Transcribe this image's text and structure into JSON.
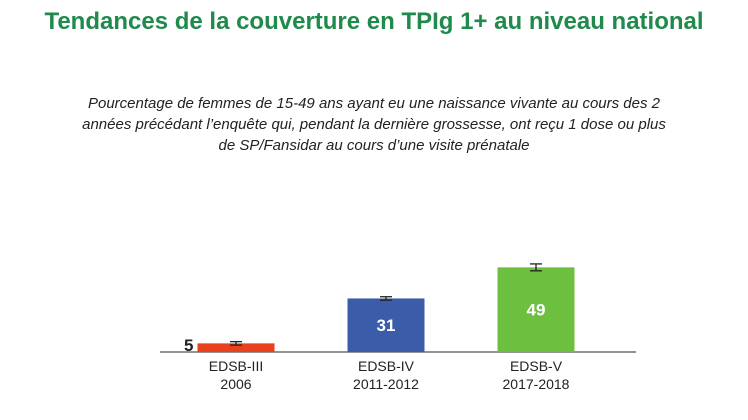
{
  "header": {
    "title": "Tendances de la couverture en TPIg 1+ au niveau national",
    "subtitle": "Pourcentage de femmes de 15-49 ans ayant eu une naissance vivante au cours des 2 années précédant l’enquête qui, pendant la dernière grossesse, ont reçu 1 dose ou plus de SP/Fansidar au cours d’une visite prénatale"
  },
  "chart_data": {
    "type": "bar",
    "title": "Tendances de la couverture en TPIg 1+ au niveau national",
    "subtitle": "Pourcentage de femmes de 15-49 ans ayant eu une naissance vivante au cours des 2 années précédant l’enquête qui, pendant la dernière grossesse, ont reçu 1 dose ou plus de SP/Fansidar au cours d’une visite prénatale",
    "categories": [
      {
        "line1": "EDSB-III",
        "line2": "2006"
      },
      {
        "line1": "EDSB-IV",
        "line2": "2011-2012"
      },
      {
        "line1": "EDSB-V",
        "line2": "2017-2018"
      }
    ],
    "values": [
      5,
      31,
      49
    ],
    "value_labels": [
      "5",
      "31",
      "49"
    ],
    "error_bars": [
      1,
      1,
      2
    ],
    "colors": [
      "#e8411c",
      "#3a5ca9",
      "#6cbf3f"
    ],
    "xlabel": "",
    "ylabel": "",
    "ylim": [
      0,
      55
    ],
    "grid": false,
    "legend": "none"
  }
}
